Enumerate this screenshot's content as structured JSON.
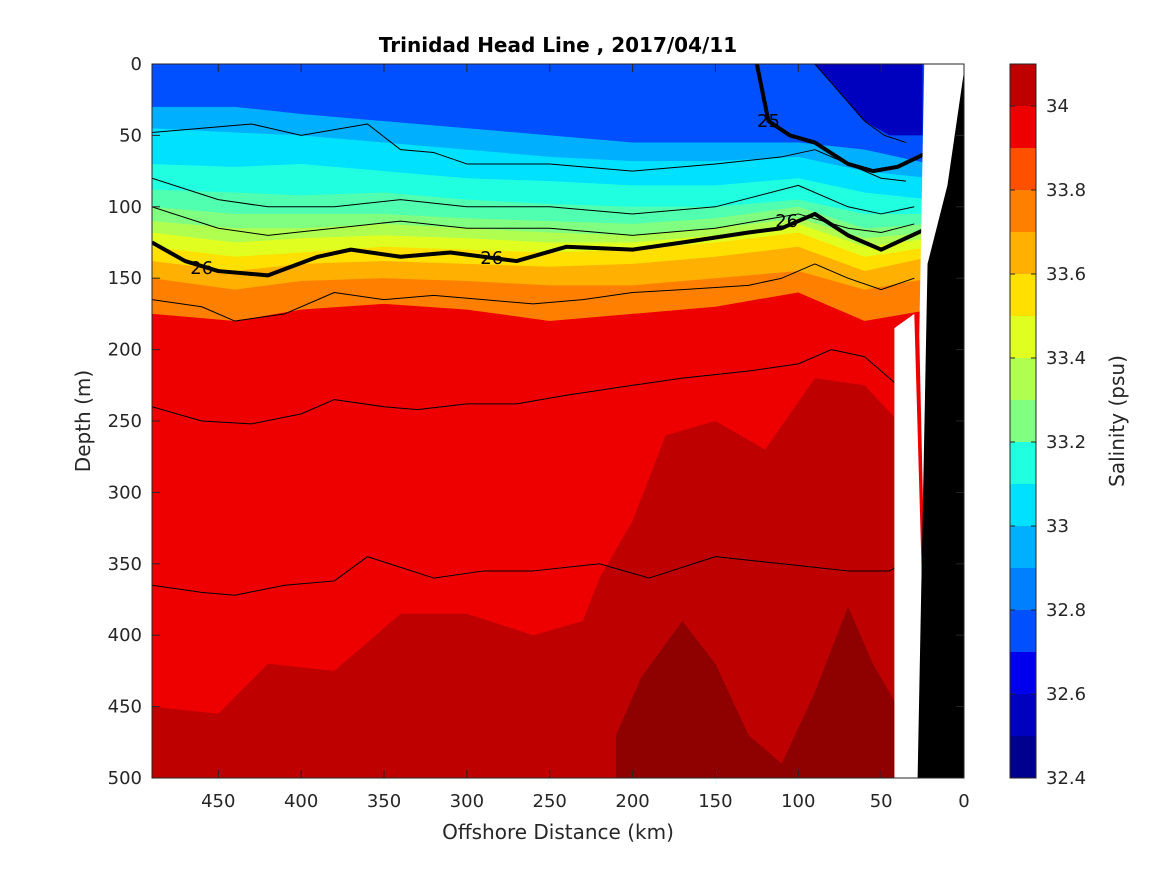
{
  "chart_data": {
    "type": "heatmap",
    "title": "Trinidad Head Line , 2017/04/11",
    "xlabel": "Offshore Distance (km)",
    "ylabel": "Depth (m)",
    "xlim": [
      490,
      0
    ],
    "ylim": [
      0,
      500
    ],
    "x_reversed": true,
    "y_reversed": true,
    "x_ticks": [
      450,
      400,
      350,
      300,
      250,
      200,
      150,
      100,
      50,
      0
    ],
    "y_ticks": [
      0,
      50,
      100,
      150,
      200,
      250,
      300,
      350,
      400,
      450,
      500
    ],
    "colorbar": {
      "label": "Salinity (psu)",
      "range": [
        32.4,
        34.1
      ],
      "ticks": [
        32.4,
        32.6,
        32.8,
        33,
        33.2,
        33.4,
        33.6,
        33.8,
        34
      ],
      "levels": [
        32.4,
        32.5,
        32.6,
        32.7,
        32.8,
        32.9,
        33.0,
        33.1,
        33.2,
        33.3,
        33.4,
        33.5,
        33.6,
        33.7,
        33.8,
        33.9,
        34.0,
        34.1
      ],
      "colors": [
        "#00008f",
        "#0000bf",
        "#0000ef",
        "#0020ff",
        "#0050ff",
        "#0080ff",
        "#00b0ff",
        "#00e0ff",
        "#20ffe0",
        "#50ffb0",
        "#80ff80",
        "#b0ff50",
        "#e0ff20",
        "#ffe000",
        "#ffb000",
        "#ff8000",
        "#ff5000",
        "#ff2000",
        "#ef0000",
        "#bf0000",
        "#8f0000"
      ]
    },
    "layers": [
      {
        "min_salinity": 32.5,
        "color": "#0000bf",
        "top_depth": [
          0,
          0,
          0,
          0,
          0,
          0,
          0,
          0,
          0,
          0
        ],
        "x": [
          490,
          440,
          400,
          350,
          300,
          250,
          200,
          150,
          100,
          50
        ]
      },
      {
        "salinity": 32.9,
        "x": [
          490,
          440,
          400,
          350,
          300,
          250,
          200,
          150,
          100,
          60,
          20
        ],
        "bottom_depth": [
          30,
          30,
          35,
          40,
          45,
          50,
          55,
          55,
          55,
          60,
          70
        ]
      },
      {
        "salinity": 33.0,
        "x": [
          490,
          440,
          400,
          350,
          300,
          250,
          200,
          150,
          100,
          60,
          20
        ],
        "bottom_depth": [
          45,
          48,
          50,
          55,
          60,
          65,
          68,
          68,
          65,
          75,
          80
        ]
      },
      {
        "salinity": 33.1,
        "x": [
          490,
          440,
          400,
          350,
          300,
          250,
          200,
          150,
          100,
          60,
          20
        ],
        "bottom_depth": [
          70,
          72,
          70,
          75,
          80,
          82,
          85,
          85,
          80,
          90,
          95
        ]
      },
      {
        "salinity": 33.2,
        "x": [
          490,
          440,
          400,
          350,
          300,
          250,
          200,
          150,
          100,
          60,
          20
        ],
        "bottom_depth": [
          88,
          90,
          92,
          90,
          95,
          98,
          100,
          100,
          95,
          105,
          105
        ]
      },
      {
        "salinity": 33.3,
        "x": [
          490,
          440,
          400,
          350,
          300,
          250,
          200,
          150,
          100,
          60,
          20
        ],
        "bottom_depth": [
          100,
          105,
          105,
          105,
          108,
          110,
          112,
          108,
          100,
          115,
          112
        ]
      },
      {
        "salinity": 33.4,
        "x": [
          490,
          440,
          400,
          350,
          300,
          250,
          200,
          150,
          100,
          60,
          20
        ],
        "bottom_depth": [
          110,
          115,
          115,
          112,
          115,
          118,
          120,
          115,
          108,
          122,
          118
        ]
      },
      {
        "salinity": 33.5,
        "x": [
          490,
          440,
          400,
          350,
          300,
          250,
          200,
          150,
          100,
          60,
          20
        ],
        "bottom_depth": [
          118,
          125,
          122,
          120,
          122,
          125,
          125,
          120,
          112,
          128,
          122
        ]
      },
      {
        "salinity": 33.6,
        "x": [
          490,
          440,
          400,
          350,
          300,
          250,
          200,
          150,
          100,
          60,
          20
        ],
        "bottom_depth": [
          128,
          135,
          132,
          128,
          130,
          132,
          130,
          125,
          118,
          135,
          128
        ]
      },
      {
        "salinity": 33.7,
        "x": [
          490,
          440,
          400,
          350,
          300,
          250,
          200,
          150,
          100,
          60,
          20
        ],
        "bottom_depth": [
          138,
          145,
          140,
          138,
          140,
          142,
          140,
          135,
          128,
          145,
          135
        ]
      },
      {
        "salinity": 33.8,
        "x": [
          490,
          440,
          400,
          350,
          300,
          250,
          200,
          150,
          100,
          60,
          20
        ],
        "bottom_depth": [
          150,
          158,
          152,
          150,
          152,
          155,
          155,
          150,
          145,
          158,
          150
        ]
      },
      {
        "salinity": 33.9,
        "x": [
          490,
          440,
          400,
          350,
          300,
          250,
          200,
          150,
          100,
          60,
          20
        ],
        "bottom_depth": [
          175,
          180,
          172,
          168,
          172,
          180,
          175,
          170,
          160,
          180,
          172
        ]
      }
    ],
    "deep_regions": [
      {
        "salinity": 34.05,
        "x": [
          490,
          450,
          420,
          380,
          340,
          300,
          260,
          230,
          220,
          200,
          180,
          150,
          120,
          90,
          60,
          40,
          40,
          490
        ],
        "depth": [
          450,
          455,
          420,
          425,
          385,
          385,
          400,
          390,
          360,
          320,
          260,
          250,
          270,
          220,
          225,
          250,
          500,
          500
        ]
      },
      {
        "salinity": 34.15,
        "x": [
          210,
          195,
          170,
          150,
          130,
          110,
          90,
          70,
          55,
          40,
          40,
          210
        ],
        "depth": [
          470,
          430,
          390,
          420,
          470,
          490,
          440,
          380,
          420,
          450,
          500,
          500
        ]
      }
    ],
    "isopycnals": [
      {
        "value": 24.5,
        "x": [
          90,
          75,
          60,
          48,
          35
        ],
        "depth": [
          0,
          20,
          40,
          50,
          55
        ],
        "bold": false
      },
      {
        "value": 25,
        "x": [
          125,
          118,
          105,
          90,
          70,
          55,
          40,
          22
        ],
        "depth": [
          0,
          40,
          50,
          55,
          70,
          75,
          72,
          62
        ],
        "bold": true
      },
      {
        "value": 25.5,
        "x": [
          490,
          460,
          430,
          400,
          360,
          340,
          320,
          300,
          250,
          200,
          150,
          110,
          90,
          70,
          50,
          35
        ],
        "depth": [
          48,
          45,
          42,
          50,
          42,
          60,
          62,
          70,
          70,
          75,
          70,
          65,
          60,
          70,
          80,
          82
        ],
        "bold": false
      },
      {
        "value": 25.8,
        "x": [
          490,
          450,
          420,
          380,
          340,
          300,
          250,
          200,
          150,
          100,
          70,
          50,
          30
        ],
        "depth": [
          80,
          95,
          100,
          100,
          95,
          100,
          100,
          105,
          100,
          85,
          100,
          105,
          100
        ],
        "bold": false
      },
      {
        "value": 25.9,
        "x": [
          490,
          450,
          420,
          380,
          340,
          300,
          250,
          200,
          150,
          100,
          70,
          50,
          30
        ],
        "depth": [
          100,
          115,
          120,
          115,
          110,
          115,
          115,
          120,
          115,
          105,
          115,
          118,
          112
        ],
        "bold": false
      },
      {
        "value": 26,
        "x": [
          490,
          470,
          450,
          420,
          390,
          370,
          340,
          310,
          290,
          270,
          240,
          200,
          170,
          130,
          110,
          90,
          70,
          50,
          22
        ],
        "depth": [
          125,
          138,
          145,
          148,
          135,
          130,
          135,
          132,
          135,
          138,
          128,
          130,
          125,
          118,
          115,
          105,
          120,
          130,
          115
        ],
        "bold": true
      },
      {
        "value": 26.2,
        "x": [
          490,
          460,
          440,
          410,
          380,
          350,
          320,
          290,
          260,
          230,
          200,
          170,
          130,
          110,
          90,
          70,
          50,
          30
        ],
        "depth": [
          165,
          170,
          180,
          175,
          160,
          165,
          162,
          165,
          168,
          165,
          160,
          158,
          155,
          150,
          140,
          150,
          158,
          150
        ],
        "bold": false
      },
      {
        "value": 26.5,
        "x": [
          490,
          460,
          430,
          400,
          380,
          350,
          330,
          300,
          270,
          240,
          200,
          170,
          130,
          100,
          80,
          60,
          40,
          30
        ],
        "depth": [
          240,
          250,
          252,
          245,
          235,
          240,
          242,
          238,
          238,
          232,
          225,
          220,
          215,
          210,
          200,
          205,
          225,
          220
        ],
        "bold": false
      },
      {
        "value": 26.7,
        "x": [
          490,
          460,
          440,
          410,
          380,
          360,
          320,
          290,
          260,
          220,
          190,
          150,
          110,
          70,
          45,
          30
        ],
        "depth": [
          365,
          370,
          372,
          365,
          362,
          345,
          360,
          355,
          355,
          350,
          360,
          345,
          350,
          355,
          355,
          345
        ],
        "bold": false
      }
    ],
    "contour_labels": [
      {
        "text": "26",
        "x": 460,
        "depth": 143
      },
      {
        "text": "26",
        "x": 285,
        "depth": 136
      },
      {
        "text": "26",
        "x": 107,
        "depth": 110
      },
      {
        "text": "25",
        "x": 118,
        "depth": 40
      }
    ],
    "bathymetry": {
      "seafloor_x": [
        42,
        38,
        29,
        25,
        21,
        20,
        10,
        4,
        0
      ],
      "seafloor_depth": [
        180,
        195,
        465,
        480,
        500,
        500,
        80,
        5,
        0
      ],
      "gap_x": [
        42,
        30,
        40,
        26
      ],
      "gap_depth": [
        190,
        185,
        470,
        500
      ]
    }
  }
}
